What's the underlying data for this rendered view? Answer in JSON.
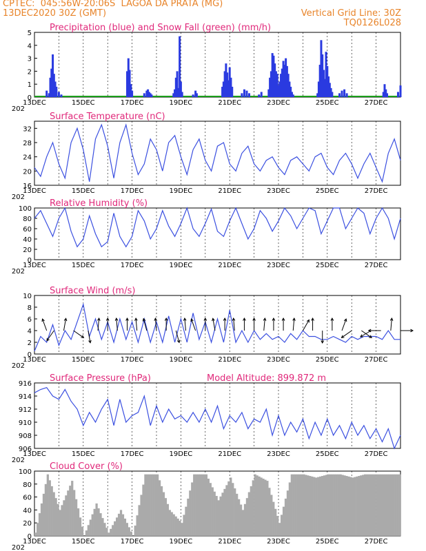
{
  "header": {
    "line1_left": "CPTEC:  045:56W-20:06S  LAGOA DA PRATA (MG)",
    "line2_left": "13DEC2020 30Z (GMT)",
    "line2_right": "Vertical Grid Line: 30Z",
    "line3_right": "TQ0126L028"
  },
  "x_dates": [
    "13DEC",
    "15DEC",
    "17DEC",
    "19DEC",
    "21DEC",
    "23DEC",
    "25DEC",
    "27DEC"
  ],
  "year_fragment": "202",
  "colors": {
    "line": "#3a4fe0",
    "precip": "#2a3ae0",
    "snow": "#1aa01a",
    "cloud": "#aaaaaa",
    "title": "#e0287a",
    "header": "#e8842a"
  },
  "chart_data": [
    {
      "type": "bar",
      "title": "Precipitation (blue) and Snow Fall (green) (mm/h)",
      "ylim": [
        0,
        5
      ],
      "yticks": [
        "0",
        "1",
        "2",
        "3",
        "4",
        "5"
      ],
      "x_day": [
        0.5,
        0.6,
        0.65,
        0.7,
        0.75,
        0.8,
        0.85,
        0.9,
        1.0,
        1.1,
        3.8,
        3.85,
        3.9,
        3.95,
        4.0,
        4.5,
        4.6,
        4.65,
        4.7,
        4.75,
        4.8,
        5.7,
        5.75,
        5.8,
        5.85,
        5.9,
        5.95,
        6.0,
        6.05,
        6.5,
        6.6,
        6.65,
        7.7,
        7.75,
        7.8,
        7.85,
        7.9,
        7.95,
        8.0,
        8.05,
        8.1,
        8.5,
        8.6,
        8.7,
        8.8,
        9.2,
        9.3,
        9.6,
        9.65,
        9.7,
        9.75,
        9.8,
        9.85,
        9.9,
        9.95,
        10.0,
        10.05,
        10.1,
        10.15,
        10.2,
        10.25,
        10.3,
        10.35,
        10.4,
        10.45,
        10.5,
        10.55,
        10.6,
        11.6,
        11.65,
        11.7,
        11.75,
        11.8,
        11.85,
        11.9,
        11.95,
        12.0,
        12.05,
        12.1,
        12.15,
        12.2,
        12.5,
        12.6,
        12.7,
        12.8,
        14.3,
        14.35,
        14.4,
        14.45,
        14.9,
        15.0
      ],
      "values": [
        0.5,
        0.3,
        1.5,
        2.2,
        3.3,
        1.8,
        1.2,
        0.8,
        0.4,
        0.2,
        2.0,
        3.0,
        2.1,
        1.0,
        0.5,
        0.3,
        0.5,
        0.6,
        0.4,
        0.3,
        0.2,
        0.3,
        0.6,
        1.5,
        2.0,
        0.7,
        4.7,
        1.2,
        0.4,
        0.2,
        0.5,
        0.3,
        0.8,
        1.2,
        2.0,
        2.6,
        1.9,
        1.3,
        2.3,
        1.5,
        0.8,
        0.3,
        0.6,
        0.5,
        0.3,
        0.2,
        0.4,
        0.6,
        1.5,
        2.0,
        3.4,
        3.2,
        2.6,
        2.0,
        1.8,
        0.9,
        1.2,
        1.8,
        2.2,
        2.8,
        2.5,
        3.0,
        2.4,
        1.8,
        1.2,
        0.8,
        0.4,
        0.2,
        0.3,
        1.2,
        2.5,
        4.4,
        3.3,
        2.1,
        1.4,
        3.5,
        2.4,
        1.6,
        1.1,
        0.7,
        0.4,
        0.3,
        0.5,
        0.6,
        0.3,
        0.4,
        1.0,
        0.6,
        0.3,
        0.4,
        0.9
      ]
    },
    {
      "type": "line",
      "title": "Surface Temperature (nC)",
      "ylim": [
        16,
        34
      ],
      "yticks": [
        "16",
        "20",
        "24",
        "28",
        "32"
      ],
      "x_day": [
        0,
        0.25,
        0.5,
        0.75,
        1,
        1.25,
        1.5,
        1.75,
        2,
        2.25,
        2.5,
        2.75,
        3,
        3.25,
        3.5,
        3.75,
        4,
        4.25,
        4.5,
        4.75,
        5,
        5.25,
        5.5,
        5.75,
        6,
        6.25,
        6.5,
        6.75,
        7,
        7.25,
        7.5,
        7.75,
        8,
        8.25,
        8.5,
        8.75,
        9,
        9.25,
        9.5,
        9.75,
        10,
        10.25,
        10.5,
        10.75,
        11,
        11.25,
        11.5,
        11.75,
        12,
        12.25,
        12.5,
        12.75,
        13,
        13.25,
        13.5,
        13.75,
        14,
        14.25,
        14.5,
        14.75,
        15
      ],
      "values": [
        21,
        18.5,
        24,
        28,
        22,
        18,
        28,
        32,
        26,
        17,
        29,
        33,
        27,
        18,
        28,
        33,
        25,
        19,
        22,
        29,
        26,
        20,
        28,
        30,
        24,
        19,
        26,
        29,
        23,
        20,
        27,
        28,
        22,
        20,
        25,
        27,
        22,
        20,
        23,
        24,
        21,
        19,
        23,
        24,
        22,
        20,
        24,
        25,
        21,
        19,
        23,
        25,
        22,
        18,
        22,
        25,
        21,
        17,
        25,
        29,
        23
      ]
    },
    {
      "type": "line",
      "title": "Relative Humidity (%)",
      "ylim": [
        0,
        100
      ],
      "yticks": [
        "0",
        "20",
        "40",
        "60",
        "80",
        "100"
      ],
      "x_day": [
        0,
        0.25,
        0.5,
        0.75,
        1,
        1.25,
        1.5,
        1.75,
        2,
        2.25,
        2.5,
        2.75,
        3,
        3.25,
        3.5,
        3.75,
        4,
        4.25,
        4.5,
        4.75,
        5,
        5.25,
        5.5,
        5.75,
        6,
        6.25,
        6.5,
        6.75,
        7,
        7.25,
        7.5,
        7.75,
        8,
        8.25,
        8.5,
        8.75,
        9,
        9.25,
        9.5,
        9.75,
        10,
        10.25,
        10.5,
        10.75,
        11,
        11.25,
        11.5,
        11.75,
        12,
        12.25,
        12.5,
        12.75,
        13,
        13.25,
        13.5,
        13.75,
        14,
        14.25,
        14.5,
        14.75,
        15
      ],
      "values": [
        80,
        95,
        70,
        45,
        80,
        100,
        55,
        25,
        40,
        85,
        50,
        25,
        35,
        90,
        45,
        25,
        45,
        95,
        75,
        40,
        60,
        95,
        65,
        45,
        70,
        100,
        60,
        45,
        70,
        98,
        55,
        45,
        75,
        100,
        70,
        40,
        60,
        95,
        80,
        55,
        75,
        100,
        85,
        60,
        80,
        100,
        95,
        50,
        75,
        100,
        100,
        60,
        80,
        100,
        90,
        50,
        80,
        100,
        80,
        40,
        80
      ]
    },
    {
      "type": "line",
      "title": "Surface Wind (m/s)",
      "ylim": [
        0,
        10
      ],
      "yticks": [
        "0",
        "2",
        "4",
        "6",
        "8",
        "10"
      ],
      "x_day": [
        0,
        0.25,
        0.5,
        0.75,
        1,
        1.25,
        1.5,
        1.75,
        2,
        2.25,
        2.5,
        2.75,
        3,
        3.25,
        3.5,
        3.75,
        4,
        4.25,
        4.5,
        4.75,
        5,
        5.25,
        5.5,
        5.75,
        6,
        6.25,
        6.5,
        6.75,
        7,
        7.25,
        7.5,
        7.75,
        8,
        8.25,
        8.5,
        8.75,
        9,
        9.25,
        9.5,
        9.75,
        10,
        10.25,
        10.5,
        10.75,
        11,
        11.25,
        11.5,
        11.75,
        12,
        12.25,
        12.5,
        12.75,
        13,
        13.25,
        13.5,
        13.75,
        14,
        14.25,
        14.5,
        14.75,
        15
      ],
      "values": [
        0.5,
        3,
        2,
        5,
        1.5,
        4,
        2.5,
        5.5,
        8.5,
        3,
        6,
        2.5,
        5.5,
        2,
        6,
        2.5,
        5.5,
        2,
        6,
        2,
        5.5,
        2,
        6.5,
        2,
        6,
        2,
        7,
        2.5,
        5.5,
        2,
        6,
        2,
        7.5,
        2,
        4,
        2,
        4,
        2.5,
        3.5,
        2.5,
        3,
        2,
        3.5,
        2.5,
        4,
        3,
        3,
        2.5,
        2.5,
        3,
        2.5,
        2,
        3,
        2.5,
        3,
        3,
        3,
        2.5,
        4,
        2.5,
        2.5
      ],
      "arrows_x_day": [
        0.5,
        0.8,
        1.2,
        1.6,
        2.2,
        2.6,
        3.0,
        3.4,
        3.8,
        4.2,
        4.6,
        5.0,
        5.4,
        5.8,
        6.2,
        6.6,
        7.0,
        7.4,
        7.8,
        8.2,
        8.6,
        9.0,
        9.4,
        9.8,
        10.2,
        10.6,
        11.0,
        11.4,
        11.8,
        12.2,
        12.6,
        13.0,
        13.4,
        13.8,
        14.2,
        14.6,
        15.0
      ],
      "arrows_angle_deg": [
        250,
        125,
        280,
        35,
        80,
        275,
        270,
        265,
        270,
        265,
        255,
        265,
        270,
        75,
        265,
        250,
        270,
        260,
        270,
        265,
        270,
        270,
        275,
        270,
        270,
        275,
        300,
        270,
        90,
        270,
        290,
        145,
        35,
        150,
        180,
        275,
        0
      ]
    },
    {
      "type": "line",
      "title": "Surface Pressure (hPa)",
      "note": "Model Altitude: 899.872 m",
      "ylim": [
        906,
        916
      ],
      "yticks": [
        "906",
        "908",
        "910",
        "912",
        "914",
        "916"
      ],
      "x_day": [
        0,
        0.25,
        0.5,
        0.75,
        1,
        1.25,
        1.5,
        1.75,
        2,
        2.25,
        2.5,
        2.75,
        3,
        3.25,
        3.5,
        3.75,
        4,
        4.25,
        4.5,
        4.75,
        5,
        5.25,
        5.5,
        5.75,
        6,
        6.25,
        6.5,
        6.75,
        7,
        7.25,
        7.5,
        7.75,
        8,
        8.25,
        8.5,
        8.75,
        9,
        9.25,
        9.5,
        9.75,
        10,
        10.25,
        10.5,
        10.75,
        11,
        11.25,
        11.5,
        11.75,
        12,
        12.25,
        12.5,
        12.75,
        13,
        13.25,
        13.5,
        13.75,
        14,
        14.25,
        14.5,
        14.75,
        15
      ],
      "values": [
        914.5,
        915,
        915.3,
        914,
        913.5,
        915,
        913.2,
        912,
        909.5,
        911.5,
        910,
        912,
        913.5,
        909.5,
        913.5,
        910,
        911,
        911.5,
        914,
        909.5,
        912.5,
        910,
        912,
        910.5,
        911,
        910,
        911.5,
        910,
        912,
        910,
        912.5,
        909,
        911,
        910,
        911.5,
        909,
        910.5,
        910,
        912,
        908,
        911,
        908,
        910,
        908.5,
        910.5,
        907.5,
        910,
        908,
        910.5,
        908,
        909.5,
        907.5,
        910,
        908,
        909.5,
        907.5,
        909,
        907,
        909,
        906,
        908
      ]
    },
    {
      "type": "bar",
      "title": "Cloud Cover (%)",
      "ylim": [
        0,
        100
      ],
      "yticks": [
        "0",
        "20",
        "40",
        "60",
        "80",
        "100"
      ],
      "x_day": [
        0,
        0.5,
        1,
        1.5,
        2,
        2.5,
        3,
        3.5,
        4,
        4.5,
        5,
        5.5,
        6,
        6.5,
        7,
        7.5,
        8,
        8.5,
        9,
        9.5,
        10,
        10.5,
        11,
        11.5,
        12,
        12.5,
        13,
        13.5,
        14,
        14.5,
        15
      ],
      "values": [
        5,
        95,
        40,
        85,
        0,
        50,
        5,
        40,
        0,
        95,
        95,
        40,
        20,
        95,
        95,
        55,
        90,
        40,
        95,
        85,
        20,
        95,
        95,
        90,
        95,
        95,
        90,
        95,
        95,
        95,
        95
      ]
    }
  ]
}
